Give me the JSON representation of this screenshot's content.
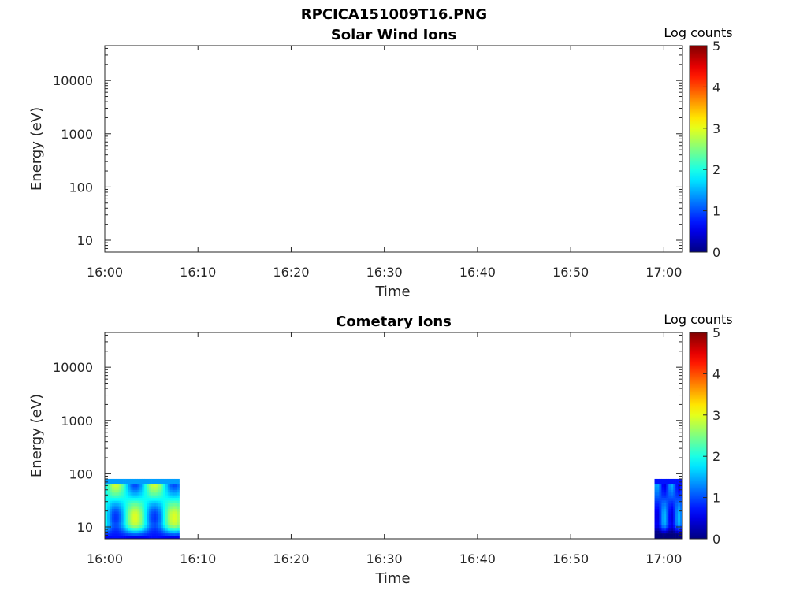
{
  "figure_title": "RPCICA151009T16.PNG",
  "colors": {
    "axis": "#262626",
    "background": "#ffffff",
    "colormap": "jet"
  },
  "chart_data": [
    {
      "type": "heatmap",
      "title": "Solar Wind Ions",
      "xlabel": "Time",
      "ylabel": "Energy (eV)",
      "xlim": [
        "16:00",
        "17:02"
      ],
      "ylim": [
        6,
        45000
      ],
      "yscale": "log",
      "x_tick_labels": [
        "16:00",
        "16:10",
        "16:20",
        "16:30",
        "16:40",
        "16:50",
        "17:00"
      ],
      "y_tick_labels": [
        "10",
        "100",
        "1000",
        "10000"
      ],
      "colorbar": {
        "label": "Log counts",
        "range": [
          0,
          5
        ],
        "ticks": [
          "0",
          "1",
          "2",
          "3",
          "4",
          "5"
        ],
        "colormap": "jet"
      },
      "segments": []
    },
    {
      "type": "heatmap",
      "title": "Cometary Ions",
      "xlabel": "Time",
      "ylabel": "Energy (eV)",
      "xlim": [
        "16:00",
        "17:02"
      ],
      "ylim": [
        6,
        45000
      ],
      "yscale": "log",
      "x_tick_labels": [
        "16:00",
        "16:10",
        "16:20",
        "16:30",
        "16:40",
        "16:50",
        "17:00"
      ],
      "y_tick_labels": [
        "10",
        "100",
        "1000",
        "10000"
      ],
      "colorbar": {
        "label": "Log counts",
        "range": [
          0,
          5
        ],
        "ticks": [
          "0",
          "1",
          "2",
          "3",
          "4",
          "5"
        ],
        "colormap": "jet"
      },
      "segments": [
        {
          "start": "16:00",
          "end": "16:08",
          "energy_range_eV": [
            6,
            80
          ],
          "peak_log_counts": 3.5
        },
        {
          "start": "16:59",
          "end": "17:02",
          "energy_range_eV": [
            6,
            80
          ],
          "peak_log_counts": 1.8
        }
      ]
    }
  ]
}
